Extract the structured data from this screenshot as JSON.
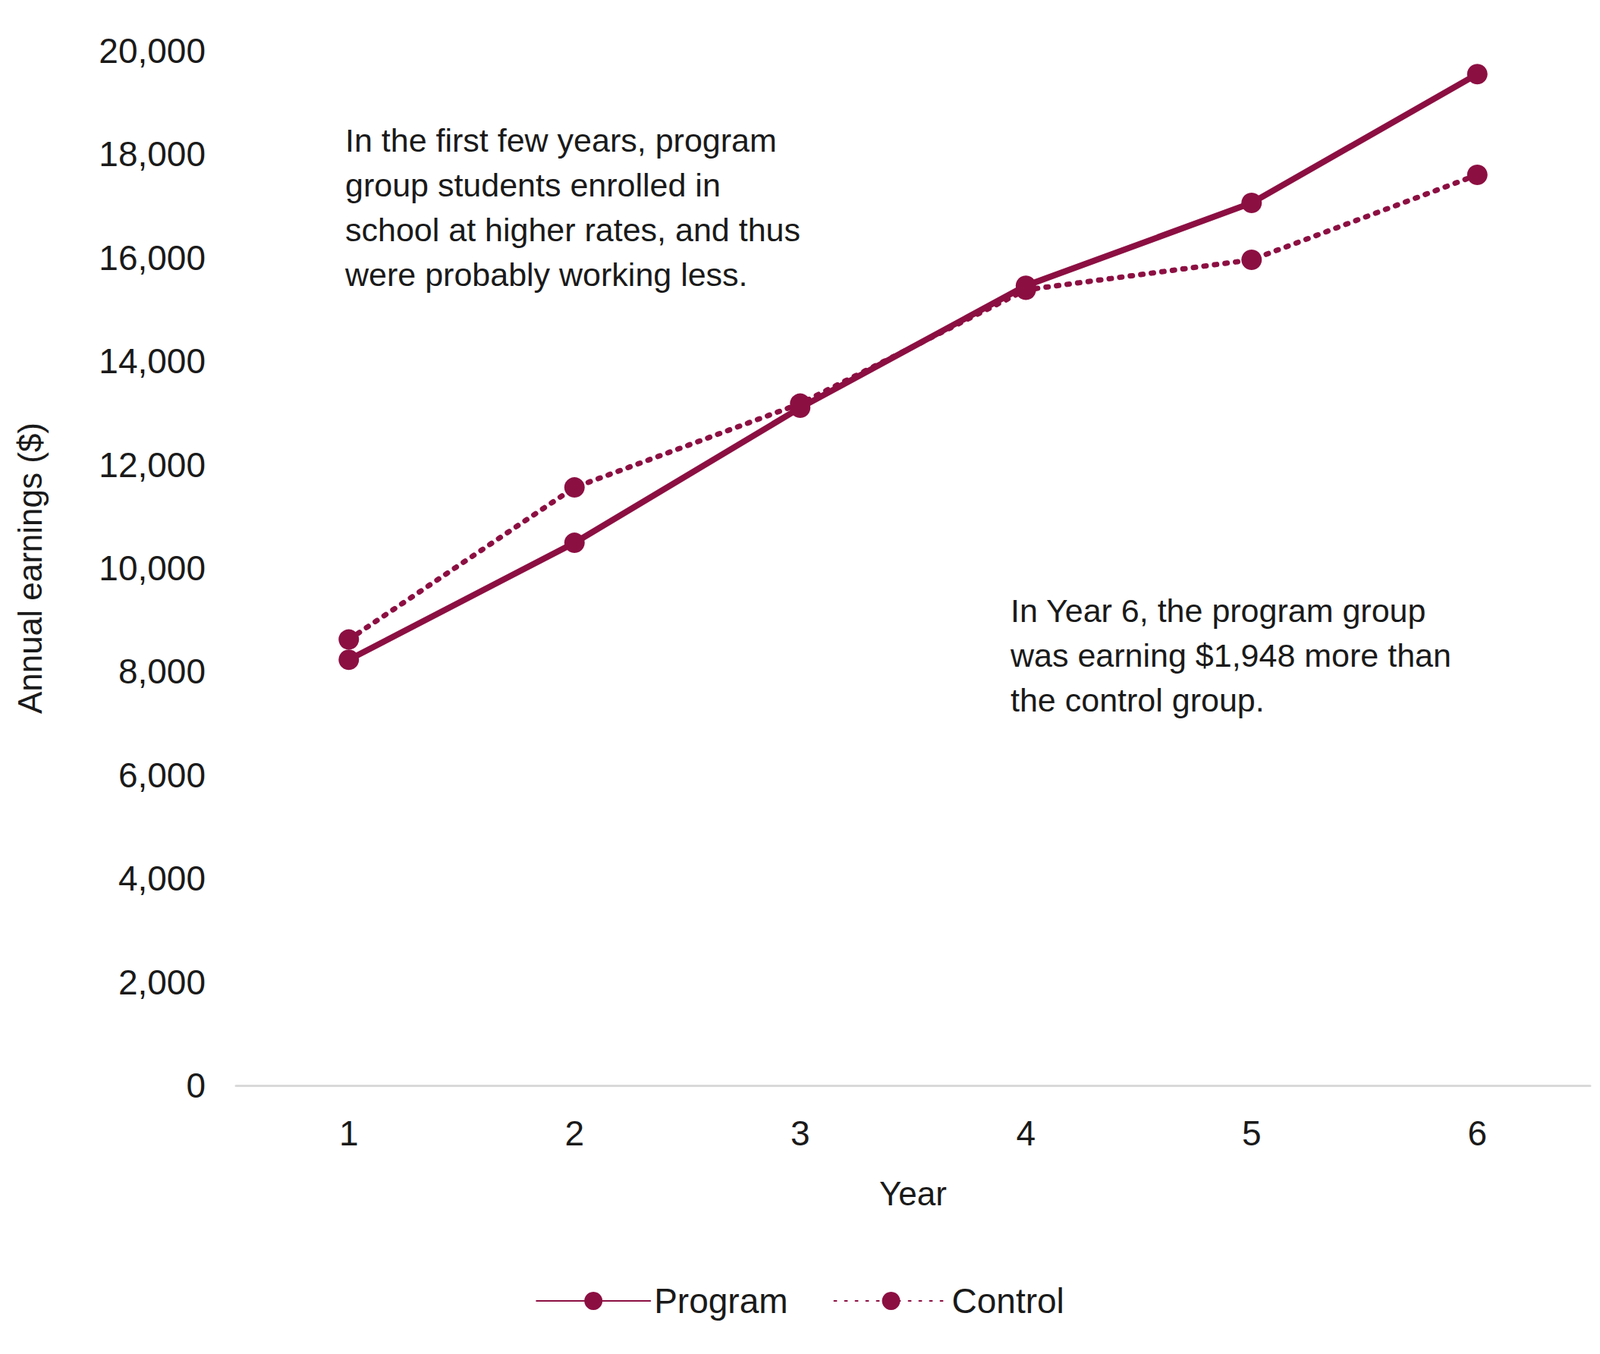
{
  "chart_data": {
    "type": "line",
    "xlabel": "Year",
    "ylabel": "Annual earnings ($)",
    "categories": [
      "1",
      "2",
      "3",
      "4",
      "5",
      "6"
    ],
    "series": [
      {
        "name": "Program",
        "color": "#8c0f42",
        "marker": "circle",
        "line_style": "solid",
        "values": [
          8230,
          10490,
          13100,
          15460,
          17060,
          19550
        ]
      },
      {
        "name": "Control",
        "color": "#8c0f42",
        "marker": "circle",
        "line_style": "dotted",
        "values": [
          8620,
          11560,
          13180,
          15380,
          15960,
          17602
        ]
      }
    ],
    "ylim": [
      0,
      20000
    ],
    "yticks": [
      0,
      {
        "value": 2000,
        "label": "2,000"
      },
      {
        "value": 4000,
        "label": "4,000"
      },
      {
        "value": 6000,
        "label": "6,000"
      },
      {
        "value": 8000,
        "label": "8,000"
      },
      {
        "value": 10000,
        "label": "10,000"
      },
      {
        "value": 12000,
        "label": "12,000"
      },
      {
        "value": 14000,
        "label": "14,000"
      },
      {
        "value": 16000,
        "label": "16,000"
      },
      {
        "value": 18000,
        "label": "18,000"
      },
      {
        "value": 20000,
        "label": "20,000"
      }
    ],
    "grid": false,
    "legend": "bottom",
    "annotations": [
      {
        "lines": [
          "In the first few years, program",
          "group students enrolled in",
          "school at higher rates, and thus",
          "were probably working less."
        ]
      },
      {
        "lines": [
          "In Year 6, the program group",
          "was earning $1,948 more than",
          "the control group."
        ]
      }
    ]
  }
}
